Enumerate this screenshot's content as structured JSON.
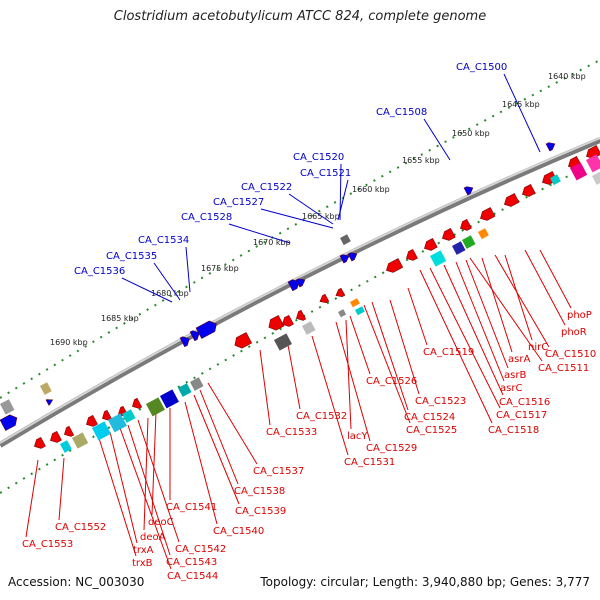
{
  "title": "Clostridium acetobutylicum ATCC 824, complete genome",
  "accession_text": "Accession: NC_003030",
  "topology_text": "Topology: circular; Length: 3,940,880 bp; Genes: 3,777",
  "colors": {
    "forward_label": "#0000cc",
    "reverse_label": "#dd0000",
    "backbone": "#888888",
    "tick": "#228822"
  },
  "ruler_ticks": [
    "1640 kbp",
    "1645 kbp",
    "1650 kbp",
    "1655 kbp",
    "1660 kbp",
    "1665 kbp",
    "1670 kbp",
    "1675 kbp",
    "1680 kbp",
    "1685 kbp",
    "1690 kbp"
  ],
  "forward_labels": [
    "CA_C1500",
    "CA_C1508",
    "CA_C1520",
    "CA_C1521",
    "CA_C1522",
    "CA_C1527",
    "CA_C1528",
    "CA_C1534",
    "CA_C1535",
    "CA_C1536"
  ],
  "reverse_labels": [
    "phoP",
    "phoR",
    "nirC",
    "CA_C1510",
    "asrA",
    "CA_C1511",
    "asrB",
    "asrC",
    "CA_C1516",
    "CA_C1517",
    "CA_C1518",
    "CA_C1519",
    "CA_C1523",
    "CA_C1524",
    "CA_C1525",
    "CA_C1526",
    "lacY",
    "CA_C1529",
    "CA_C1531",
    "CA_C1532",
    "CA_C1533",
    "CA_C1537",
    "CA_C1538",
    "CA_C1539",
    "CA_C1540",
    "CA_C1541",
    "deoC",
    "deoA",
    "CA_C1542",
    "CA_C1543",
    "CA_C1544",
    "trxA",
    "trxB",
    "CA_C1552",
    "CA_C1553"
  ]
}
